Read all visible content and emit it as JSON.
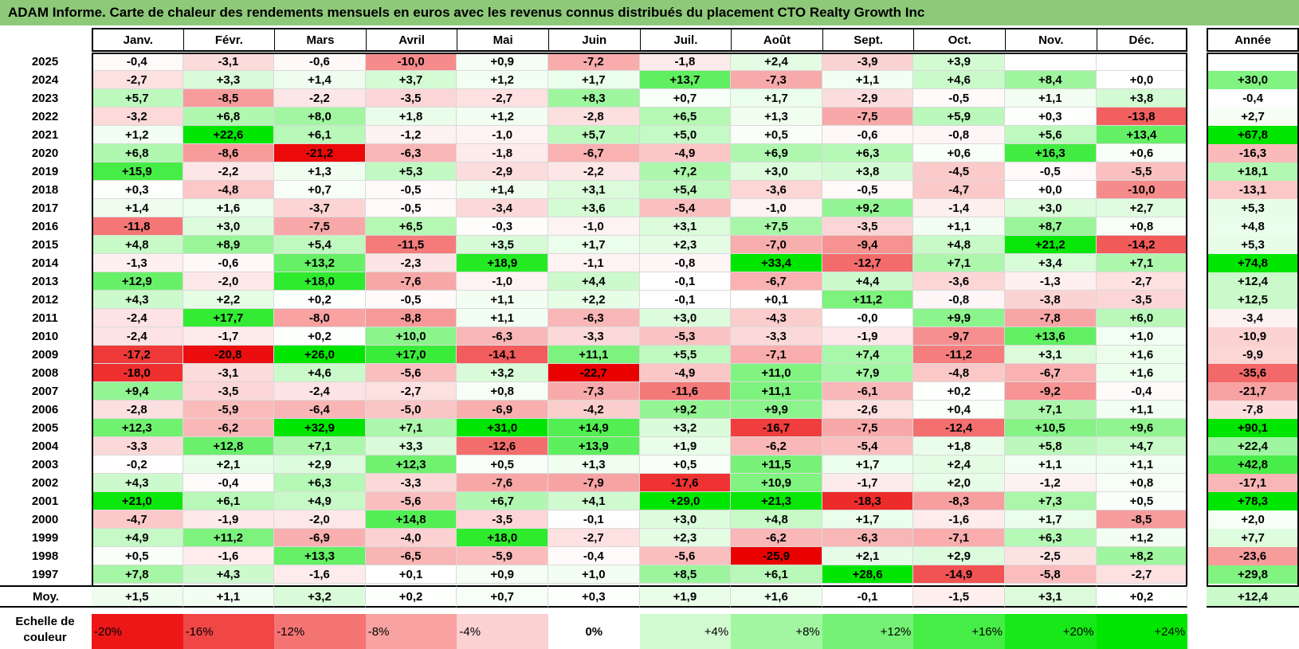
{
  "title": "ADAM Informe. Carte de chaleur des rendements mensuels en euros avec les revenus connus distribués du placement CTO Realty Growth Inc",
  "chart_data": {
    "type": "heatmap",
    "months": [
      "Janv.",
      "Févr.",
      "Mars",
      "Avril",
      "Mai",
      "Juin",
      "Juil.",
      "Août",
      "Sept.",
      "Oct.",
      "Nov.",
      "Déc."
    ],
    "year_header": "Année",
    "rows": [
      {
        "year": "2025",
        "values": [
          "-0,4",
          "-3,1",
          "-0,6",
          "-10,0",
          "+0,9",
          "-7,2",
          "-1,8",
          "+2,4",
          "-3,9",
          "+3,9",
          "",
          ""
        ],
        "annual": ""
      },
      {
        "year": "2024",
        "values": [
          "-2,7",
          "+3,3",
          "+1,4",
          "+3,7",
          "+1,2",
          "+1,7",
          "+13,7",
          "-7,3",
          "+1,1",
          "+4,6",
          "+8,4",
          "+0,0"
        ],
        "annual": "+30,0"
      },
      {
        "year": "2023",
        "values": [
          "+5,7",
          "-8,5",
          "-2,2",
          "-3,5",
          "-2,7",
          "+8,3",
          "+0,7",
          "+1,7",
          "-2,9",
          "-0,5",
          "+1,1",
          "+3,8"
        ],
        "annual": "-0,4"
      },
      {
        "year": "2022",
        "values": [
          "-3,2",
          "+6,8",
          "+8,0",
          "+1,8",
          "+1,2",
          "-2,8",
          "+6,5",
          "+1,3",
          "-7,5",
          "+5,9",
          "+0,3",
          "-13,8"
        ],
        "annual": "+2,7"
      },
      {
        "year": "2021",
        "values": [
          "+1,2",
          "+22,6",
          "+6,1",
          "-1,2",
          "-1,0",
          "+5,7",
          "+5,0",
          "+0,5",
          "-0,6",
          "-0,8",
          "+5,6",
          "+13,4"
        ],
        "annual": "+67,8"
      },
      {
        "year": "2020",
        "values": [
          "+6,8",
          "-8,6",
          "-21,2",
          "-6,3",
          "-1,8",
          "-6,7",
          "-4,9",
          "+6,9",
          "+6,3",
          "+0,6",
          "+16,3",
          "+0,6"
        ],
        "annual": "-16,3"
      },
      {
        "year": "2019",
        "values": [
          "+15,9",
          "-2,2",
          "+1,3",
          "+5,3",
          "-2,9",
          "-2,2",
          "+7,2",
          "+3,0",
          "+3,8",
          "-4,5",
          "-0,5",
          "-5,5"
        ],
        "annual": "+18,1"
      },
      {
        "year": "2018",
        "values": [
          "+0,3",
          "-4,8",
          "+0,7",
          "-0,5",
          "+1,4",
          "+3,1",
          "+5,4",
          "-3,6",
          "-0,5",
          "-4,7",
          "+0,0",
          "-10,0"
        ],
        "annual": "-13,1"
      },
      {
        "year": "2017",
        "values": [
          "+1,4",
          "+1,6",
          "-3,7",
          "-0,5",
          "-3,4",
          "+3,6",
          "-5,4",
          "-1,0",
          "+9,2",
          "-1,4",
          "+3,0",
          "+2,7"
        ],
        "annual": "+5,3"
      },
      {
        "year": "2016",
        "values": [
          "-11,8",
          "+3,0",
          "-7,5",
          "+6,5",
          "-0,3",
          "-1,0",
          "+3,1",
          "+7,5",
          "-3,5",
          "+1,1",
          "+8,7",
          "+0,8"
        ],
        "annual": "+4,8"
      },
      {
        "year": "2015",
        "values": [
          "+4,8",
          "+8,9",
          "+5,4",
          "-11,5",
          "+3,5",
          "+1,7",
          "+2,3",
          "-7,0",
          "-9,4",
          "+4,8",
          "+21,2",
          "-14,2"
        ],
        "annual": "+5,3"
      },
      {
        "year": "2014",
        "values": [
          "-1,3",
          "-0,6",
          "+13,2",
          "-2,3",
          "+18,9",
          "-1,1",
          "-0,8",
          "+33,4",
          "-12,7",
          "+7,1",
          "+3,4",
          "+7,1"
        ],
        "annual": "+74,8"
      },
      {
        "year": "2013",
        "values": [
          "+12,9",
          "-2,0",
          "+18,0",
          "-7,6",
          "-1,0",
          "+4,4",
          "-0,1",
          "-6,7",
          "+4,4",
          "-3,6",
          "-1,3",
          "-2,7"
        ],
        "annual": "+12,4"
      },
      {
        "year": "2012",
        "values": [
          "+4,3",
          "+2,2",
          "+0,2",
          "-0,5",
          "+1,1",
          "+2,2",
          "-0,1",
          "+0,1",
          "+11,2",
          "-0,8",
          "-3,8",
          "-3,5"
        ],
        "annual": "+12,5"
      },
      {
        "year": "2011",
        "values": [
          "-2,4",
          "+17,7",
          "-8,0",
          "-8,8",
          "+1,1",
          "-6,3",
          "+3,0",
          "-4,3",
          "-0,0",
          "+9,9",
          "-7,8",
          "+6,0"
        ],
        "annual": "-3,4"
      },
      {
        "year": "2010",
        "values": [
          "-2,4",
          "-1,7",
          "+0,2",
          "+10,0",
          "-6,3",
          "-3,3",
          "-5,3",
          "-3,3",
          "-1,9",
          "-9,7",
          "+13,6",
          "+1,0"
        ],
        "annual": "-10,9"
      },
      {
        "year": "2009",
        "values": [
          "-17,2",
          "-20,8",
          "+26,0",
          "+17,0",
          "-14,1",
          "+11,1",
          "+5,5",
          "-7,1",
          "+7,4",
          "-11,2",
          "+3,1",
          "+1,6"
        ],
        "annual": "-9,9"
      },
      {
        "year": "2008",
        "values": [
          "-18,0",
          "-3,1",
          "+4,6",
          "-5,6",
          "+3,2",
          "-22,7",
          "-4,9",
          "+11,0",
          "+7,9",
          "-4,8",
          "-6,7",
          "+1,6"
        ],
        "annual": "-35,6"
      },
      {
        "year": "2007",
        "values": [
          "+9,4",
          "-3,5",
          "-2,4",
          "-2,7",
          "+0,8",
          "-7,3",
          "-11,6",
          "+11,1",
          "-6,1",
          "+0,2",
          "-9,2",
          "-0,4"
        ],
        "annual": "-21,7"
      },
      {
        "year": "2006",
        "values": [
          "-2,8",
          "-5,9",
          "-6,4",
          "-5,0",
          "-6,9",
          "-4,2",
          "+9,2",
          "+9,9",
          "-2,6",
          "+0,4",
          "+7,1",
          "+1,1"
        ],
        "annual": "-7,8"
      },
      {
        "year": "2005",
        "values": [
          "+12,3",
          "-6,2",
          "+32,9",
          "+7,1",
          "+31,0",
          "+14,9",
          "+3,2",
          "-16,7",
          "-7,5",
          "-12,4",
          "+10,5",
          "+9,6"
        ],
        "annual": "+90,1"
      },
      {
        "year": "2004",
        "values": [
          "-3,3",
          "+12,8",
          "+7,1",
          "+3,3",
          "-12,6",
          "+13,9",
          "+1,9",
          "-6,2",
          "-5,4",
          "+1,8",
          "+5,8",
          "+4,7"
        ],
        "annual": "+22,4"
      },
      {
        "year": "2003",
        "values": [
          "-0,2",
          "+2,1",
          "+2,9",
          "+12,3",
          "+0,5",
          "+1,3",
          "+0,5",
          "+11,5",
          "+1,7",
          "+2,4",
          "+1,1",
          "+1,1"
        ],
        "annual": "+42,8"
      },
      {
        "year": "2002",
        "values": [
          "+4,3",
          "-0,4",
          "+6,3",
          "-3,3",
          "-7,6",
          "-7,9",
          "-17,6",
          "+10,9",
          "-1,7",
          "+2,0",
          "-1,2",
          "+0,8"
        ],
        "annual": "-17,1"
      },
      {
        "year": "2001",
        "values": [
          "+21,0",
          "+6,1",
          "+4,9",
          "-5,6",
          "+6,7",
          "+4,1",
          "+29,0",
          "+21,3",
          "-18,3",
          "-8,3",
          "+7,3",
          "+0,5"
        ],
        "annual": "+78,3"
      },
      {
        "year": "2000",
        "values": [
          "-4,7",
          "-1,9",
          "-2,0",
          "+14,8",
          "-3,5",
          "-0,1",
          "+3,0",
          "+4,8",
          "+1,7",
          "-1,6",
          "+1,7",
          "-8,5"
        ],
        "annual": "+2,0"
      },
      {
        "year": "1999",
        "values": [
          "+4,9",
          "+11,2",
          "-6,9",
          "-4,0",
          "+18,0",
          "-2,7",
          "+2,3",
          "-6,2",
          "-6,3",
          "-7,1",
          "+6,3",
          "+1,2"
        ],
        "annual": "+7,7"
      },
      {
        "year": "1998",
        "values": [
          "+0,5",
          "-1,6",
          "+13,3",
          "-6,5",
          "-5,9",
          "-0,4",
          "-5,6",
          "-25,9",
          "+2,1",
          "+2,9",
          "-2,5",
          "+8,2"
        ],
        "annual": "-23,6"
      },
      {
        "year": "1997",
        "values": [
          "+7,8",
          "+4,3",
          "-1,6",
          "+0,1",
          "+0,9",
          "+1,0",
          "+8,5",
          "+6,1",
          "+28,6",
          "-14,9",
          "-5,8",
          "-2,7"
        ],
        "annual": "+29,8"
      }
    ],
    "average": {
      "label": "Moy.",
      "values": [
        "+1,5",
        "+1,1",
        "+3,2",
        "+0,2",
        "+0,7",
        "+0,3",
        "+1,9",
        "+1,6",
        "-0,1",
        "-1,5",
        "+3,1",
        "+0,2"
      ],
      "annual": "+12,4"
    },
    "scale": {
      "label": "Echelle de couleur",
      "stops": [
        {
          "label": "-20%",
          "value": -20,
          "align": "left"
        },
        {
          "label": "-16%",
          "value": -16,
          "align": "left"
        },
        {
          "label": "-12%",
          "value": -12,
          "align": "left"
        },
        {
          "label": "-8%",
          "value": -8,
          "align": "left"
        },
        {
          "label": "-4%",
          "value": -4,
          "align": "left"
        },
        {
          "label": "0%",
          "value": 0,
          "align": "center"
        },
        {
          "label": "+4%",
          "value": 4,
          "align": "right"
        },
        {
          "label": "+8%",
          "value": 8,
          "align": "right"
        },
        {
          "label": "+12%",
          "value": 12,
          "align": "right"
        },
        {
          "label": "+16%",
          "value": 16,
          "align": "right"
        },
        {
          "label": "+20%",
          "value": 20,
          "align": "right"
        },
        {
          "label": "+24%",
          "value": 24,
          "align": "right"
        }
      ]
    }
  }
}
